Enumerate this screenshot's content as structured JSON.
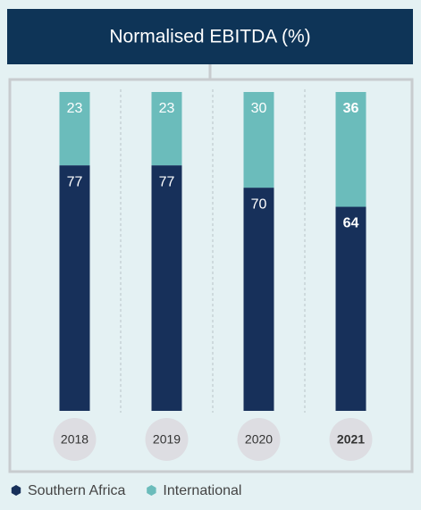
{
  "chart_data": {
    "type": "stacked_bar",
    "title": "Normalised EBITDA (%)",
    "categories": [
      "2018",
      "2019",
      "2020",
      "2021"
    ],
    "series": [
      {
        "name": "Southern Africa",
        "color": "#17305a",
        "values": [
          77,
          77,
          70,
          64
        ]
      },
      {
        "name": "International",
        "color": "#6bbcbb",
        "values": [
          23,
          23,
          30,
          36
        ]
      }
    ],
    "ylim": [
      0,
      100
    ],
    "legend": "bottom-left"
  }
}
